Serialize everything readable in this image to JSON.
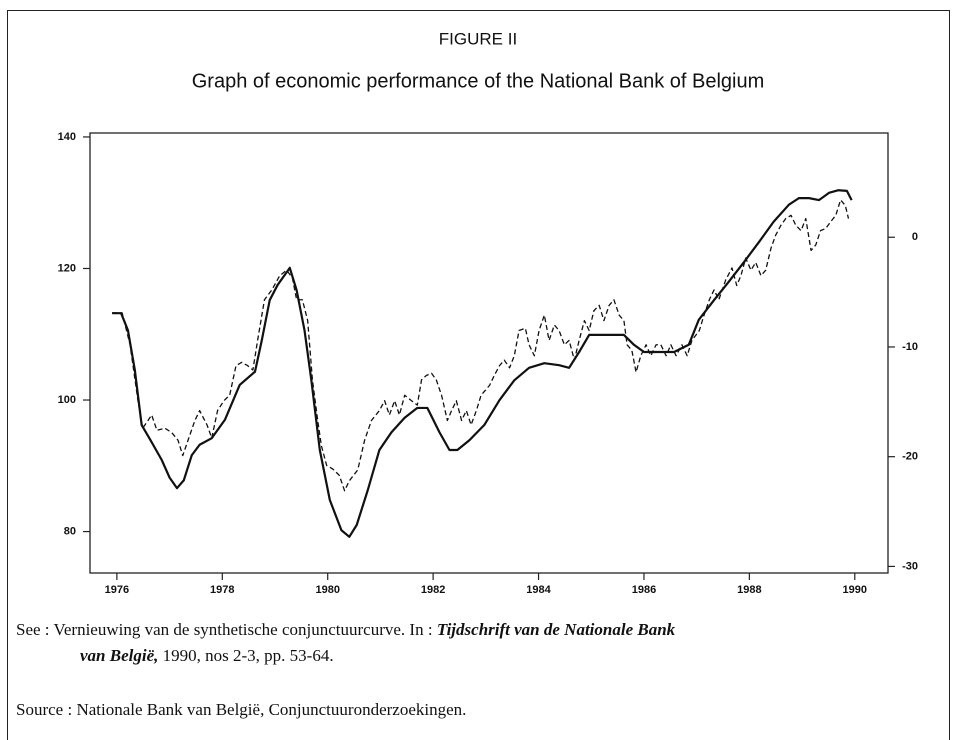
{
  "chart_data": {
    "type": "line",
    "figure_label": "FIGURE II",
    "title": "Graph of economic performance of the National Bank of Belgium",
    "xlim": [
      1975.49,
      1990.63
    ],
    "xticks": [
      1976,
      1978,
      1980,
      1982,
      1984,
      1986,
      1988,
      1990
    ],
    "ylim": [
      73.7,
      140.6
    ],
    "yticks": [
      80,
      100,
      120,
      140
    ],
    "y2lim": [
      -30.6,
      9.5
    ],
    "y2ticks": [
      -30,
      -20,
      -10,
      0
    ],
    "grid": false,
    "series": [
      {
        "color": "#111111",
        "dash": false,
        "axis": "y",
        "x": [
          1975.91,
          1976.08,
          1976.21,
          1976.34,
          1976.47,
          1976.63,
          1976.85,
          1977.0,
          1977.14,
          1977.27,
          1977.42,
          1977.57,
          1977.8,
          1978.05,
          1978.33,
          1978.62,
          1978.75,
          1978.9,
          1979.05,
          1979.28,
          1979.41,
          1979.56,
          1979.69,
          1979.85,
          1980.04,
          1980.26,
          1980.41,
          1980.55,
          1980.76,
          1980.98,
          1981.21,
          1981.46,
          1981.7,
          1981.89,
          1982.12,
          1982.31,
          1982.46,
          1982.69,
          1982.97,
          1983.26,
          1983.54,
          1983.82,
          1984.11,
          1984.39,
          1984.58,
          1984.77,
          1984.96,
          1985.34,
          1985.62,
          1985.81,
          1986.0,
          1986.29,
          1986.57,
          1986.85,
          1987.04,
          1987.33,
          1987.61,
          1987.9,
          1988.18,
          1988.46,
          1988.75,
          1988.94,
          1989.13,
          1989.32,
          1989.51,
          1989.69,
          1989.85,
          1989.94
        ],
        "values": [
          113.2,
          113.2,
          110.6,
          104.6,
          96.2,
          94.0,
          90.9,
          88.2,
          86.6,
          87.8,
          91.6,
          93.2,
          94.2,
          97.0,
          102.3,
          104.3,
          109.1,
          115.2,
          117.5,
          120.1,
          116.7,
          110.6,
          103.0,
          92.4,
          84.8,
          80.2,
          79.2,
          81.0,
          86.3,
          92.4,
          95.1,
          97.3,
          98.8,
          98.8,
          95.1,
          92.4,
          92.4,
          93.9,
          96.2,
          100.0,
          103.0,
          104.9,
          105.6,
          105.3,
          104.9,
          107.3,
          109.9,
          109.9,
          109.9,
          108.4,
          107.3,
          107.3,
          107.3,
          108.4,
          112.2,
          115.2,
          118.0,
          121.0,
          124.0,
          127.1,
          129.7,
          130.7,
          130.7,
          130.4,
          131.5,
          131.9,
          131.8,
          130.4
        ]
      },
      {
        "color": "#111111",
        "dash": true,
        "axis": "y2",
        "x": [
          1975.91,
          1976.1,
          1976.25,
          1976.4,
          1976.49,
          1976.59,
          1976.66,
          1976.76,
          1976.91,
          1977.04,
          1977.16,
          1977.25,
          1977.35,
          1977.48,
          1977.57,
          1977.71,
          1977.8,
          1977.91,
          1978.03,
          1978.14,
          1978.26,
          1978.37,
          1978.48,
          1978.58,
          1978.67,
          1978.8,
          1978.94,
          1979.09,
          1979.22,
          1979.33,
          1979.41,
          1979.52,
          1979.62,
          1979.71,
          1979.81,
          1979.88,
          1979.98,
          1980.09,
          1980.22,
          1980.32,
          1980.41,
          1980.57,
          1980.7,
          1980.83,
          1980.98,
          1981.08,
          1981.17,
          1981.27,
          1981.36,
          1981.46,
          1981.59,
          1981.7,
          1981.78,
          1981.87,
          1981.97,
          1982.06,
          1982.16,
          1982.27,
          1982.35,
          1982.44,
          1982.54,
          1982.63,
          1982.72,
          1982.82,
          1982.91,
          1983.07,
          1983.16,
          1983.26,
          1983.35,
          1983.45,
          1983.54,
          1983.63,
          1983.75,
          1983.82,
          1983.92,
          1984.01,
          1984.11,
          1984.2,
          1984.3,
          1984.39,
          1984.49,
          1984.58,
          1984.68,
          1984.77,
          1984.87,
          1984.96,
          1985.05,
          1985.15,
          1985.24,
          1985.34,
          1985.43,
          1985.53,
          1985.62,
          1985.68,
          1985.77,
          1985.85,
          1985.94,
          1986.04,
          1986.13,
          1986.23,
          1986.32,
          1986.42,
          1986.51,
          1986.61,
          1986.72,
          1986.82,
          1986.91,
          1987.05,
          1987.14,
          1987.24,
          1987.33,
          1987.42,
          1987.55,
          1987.67,
          1987.76,
          1987.84,
          1987.93,
          1988.03,
          1988.12,
          1988.22,
          1988.31,
          1988.41,
          1988.5,
          1988.6,
          1988.69,
          1988.79,
          1988.88,
          1988.98,
          1989.07,
          1989.17,
          1989.26,
          1989.35,
          1989.45,
          1989.54,
          1989.64,
          1989.73,
          1989.82,
          1989.88
        ],
        "values": [
          -6.9,
          -6.9,
          -9.8,
          -14.9,
          -17.4,
          -16.7,
          -16.2,
          -17.6,
          -17.4,
          -17.8,
          -18.5,
          -19.9,
          -18.5,
          -16.7,
          -15.8,
          -17.1,
          -18.3,
          -15.8,
          -14.9,
          -14.4,
          -11.7,
          -11.4,
          -11.7,
          -12.1,
          -9.4,
          -5.7,
          -4.8,
          -3.5,
          -3.0,
          -3.7,
          -5.7,
          -5.7,
          -7.6,
          -13.0,
          -16.7,
          -19.0,
          -20.8,
          -21.1,
          -21.7,
          -23.1,
          -22.2,
          -21.2,
          -18.5,
          -16.7,
          -15.8,
          -14.9,
          -16.2,
          -14.9,
          -16.2,
          -14.4,
          -14.9,
          -15.3,
          -13.0,
          -12.6,
          -12.4,
          -13.0,
          -14.4,
          -16.7,
          -15.8,
          -14.9,
          -16.7,
          -15.8,
          -17.1,
          -15.8,
          -14.4,
          -13.5,
          -12.6,
          -11.7,
          -11.2,
          -11.9,
          -10.8,
          -8.5,
          -8.3,
          -9.8,
          -10.8,
          -8.5,
          -7.1,
          -9.4,
          -8.0,
          -8.5,
          -9.8,
          -9.4,
          -11.2,
          -9.4,
          -7.6,
          -8.5,
          -6.7,
          -6.2,
          -7.6,
          -6.2,
          -5.7,
          -7.1,
          -7.6,
          -9.8,
          -10.3,
          -12.3,
          -10.8,
          -9.8,
          -10.8,
          -9.8,
          -9.8,
          -10.8,
          -9.8,
          -10.8,
          -9.8,
          -10.8,
          -9.4,
          -8.5,
          -7.1,
          -5.7,
          -4.8,
          -5.7,
          -3.9,
          -2.8,
          -4.4,
          -3.5,
          -1.9,
          -3.0,
          -2.3,
          -3.5,
          -3.0,
          -1.0,
          0.2,
          1.1,
          1.7,
          2.0,
          1.1,
          0.6,
          1.7,
          -1.2,
          -0.7,
          0.6,
          0.8,
          1.4,
          2.0,
          3.4,
          2.9,
          1.7
        ]
      }
    ],
    "see": {
      "label": "See :",
      "text": "Vernieuwing van de synthetische conjunctuurcurve. In :",
      "journal": "Tijdschrift van de Nationale Bank van België,",
      "details": "1990, nos 2-3, pp. 53-64."
    },
    "source": {
      "label": "Source :",
      "text": "Nationale Bank van België, Conjunctuuronderzoekingen."
    }
  }
}
